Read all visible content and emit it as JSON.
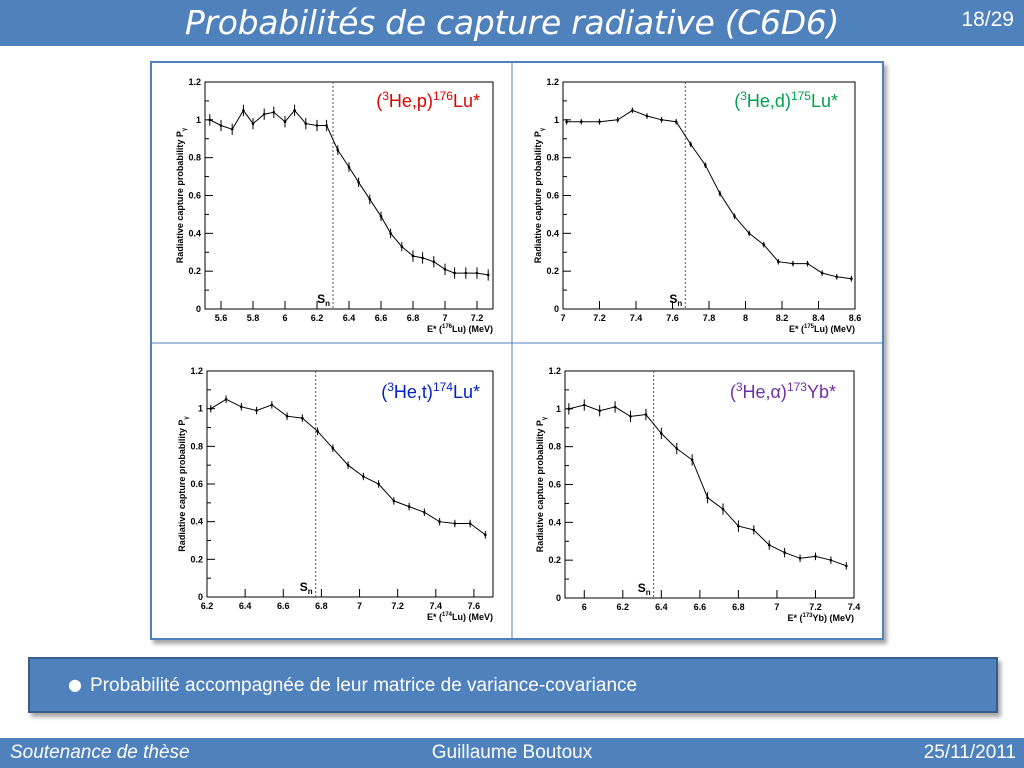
{
  "slide": {
    "title": "Probabilités de capture radiative (C6D6)",
    "page": "18/29",
    "bullet": "Probabilité accompagnée de leur matrice de variance-covariance",
    "footer_left": "Soutenance de thèse",
    "footer_center": "Guillaume Boutoux",
    "footer_right": "25/11/2011"
  },
  "colors": {
    "accent": "#4f81bd",
    "reaction_p": "#e00000",
    "reaction_d": "#00a050",
    "reaction_t": "#0020c0",
    "reaction_alpha": "#7030a0"
  },
  "chart_data": [
    {
      "type": "line",
      "reaction": {
        "pre": "(",
        "sup1": "3",
        "mid": "He,p)",
        "sup2": "176",
        "post": "Lu*"
      },
      "ylabel": "Radiative capture probability P",
      "ylabel_sub": "γ",
      "xlabel": {
        "pre": "E* (",
        "sup": "176",
        "post": "Lu) (MeV)"
      },
      "xlim": [
        5.5,
        7.3
      ],
      "ylim": [
        0,
        1.2
      ],
      "xticks": [
        5.6,
        5.8,
        6,
        6.2,
        6.4,
        6.6,
        6.8,
        7,
        7.2
      ],
      "xtick_labels": [
        "5.6",
        "5.8",
        "6",
        "6.2",
        "6.4",
        "6.6",
        "6.8",
        "7",
        "7.2"
      ],
      "yticks": [
        0,
        0.2,
        0.4,
        0.6,
        0.8,
        1,
        1.2
      ],
      "ytick_labels": [
        "0",
        "0.2",
        "0.4",
        "0.6",
        "0.8",
        "1",
        "1.2"
      ],
      "sn": 6.3,
      "sn_label": "S",
      "sn_sub": "n",
      "series": [
        {
          "x": [
            5.53,
            5.6,
            5.67,
            5.74,
            5.8,
            5.87,
            5.93,
            6.0,
            6.06,
            6.13,
            6.2,
            6.26,
            6.33,
            6.4,
            6.46,
            6.53,
            6.6,
            6.66,
            6.73,
            6.8,
            6.86,
            6.93,
            7.0,
            7.06,
            7.13,
            7.2,
            7.27
          ],
          "y": [
            1.0,
            0.97,
            0.95,
            1.05,
            0.98,
            1.03,
            1.04,
            0.99,
            1.05,
            0.98,
            0.97,
            0.97,
            0.84,
            0.75,
            0.67,
            0.58,
            0.49,
            0.4,
            0.33,
            0.28,
            0.27,
            0.25,
            0.21,
            0.19,
            0.19,
            0.19,
            0.18
          ],
          "err": [
            0.03,
            0.03,
            0.03,
            0.03,
            0.03,
            0.03,
            0.03,
            0.03,
            0.03,
            0.03,
            0.03,
            0.03,
            0.025,
            0.025,
            0.025,
            0.025,
            0.025,
            0.025,
            0.025,
            0.03,
            0.03,
            0.03,
            0.03,
            0.03,
            0.03,
            0.03,
            0.03
          ]
        }
      ]
    },
    {
      "type": "line",
      "reaction": {
        "pre": "(",
        "sup1": "3",
        "mid": "He,d)",
        "sup2": "175",
        "post": "Lu*"
      },
      "ylabel": "Radiative capture probability P",
      "ylabel_sub": "γ",
      "xlabel": {
        "pre": "E* (",
        "sup": "175",
        "post": "Lu) (MeV)"
      },
      "xlim": [
        7.0,
        8.6
      ],
      "ylim": [
        0,
        1.2
      ],
      "xticks": [
        7.0,
        7.2,
        7.4,
        7.6,
        7.8,
        8.0,
        8.2,
        8.4,
        8.6
      ],
      "xtick_labels": [
        "7",
        "7.2",
        "7.4",
        "7.6",
        "7.8",
        "8",
        "8.2",
        "8.4",
        "8.6"
      ],
      "yticks": [
        0,
        0.2,
        0.4,
        0.6,
        0.8,
        1,
        1.2
      ],
      "ytick_labels": [
        "0",
        "0.2",
        "0.4",
        "0.6",
        "0.8",
        "1",
        "1.2"
      ],
      "sn": 7.67,
      "sn_label": "S",
      "sn_sub": "n",
      "series": [
        {
          "x": [
            7.02,
            7.1,
            7.2,
            7.3,
            7.38,
            7.46,
            7.54,
            7.62,
            7.7,
            7.78,
            7.86,
            7.94,
            8.02,
            8.1,
            8.18,
            8.26,
            8.34,
            8.42,
            8.5,
            8.58
          ],
          "y": [
            0.99,
            0.99,
            0.99,
            1.0,
            1.05,
            1.02,
            1.0,
            0.99,
            0.87,
            0.76,
            0.61,
            0.49,
            0.4,
            0.34,
            0.25,
            0.24,
            0.24,
            0.19,
            0.17,
            0.16
          ],
          "err": [
            0.015,
            0.015,
            0.015,
            0.015,
            0.015,
            0.015,
            0.015,
            0.015,
            0.015,
            0.015,
            0.015,
            0.015,
            0.015,
            0.015,
            0.015,
            0.015,
            0.015,
            0.015,
            0.015,
            0.015
          ]
        }
      ]
    },
    {
      "type": "line",
      "reaction": {
        "pre": "(",
        "sup1": "3",
        "mid": "He,t)",
        "sup2": "174",
        "post": "Lu*"
      },
      "ylabel": "Radiative capture probability P",
      "ylabel_sub": "γ",
      "xlabel": {
        "pre": "E* (",
        "sup": "174",
        "post": "Lu) (MeV)"
      },
      "xlim": [
        6.2,
        7.7
      ],
      "ylim": [
        0,
        1.2
      ],
      "xticks": [
        6.2,
        6.4,
        6.6,
        6.8,
        7.0,
        7.2,
        7.4,
        7.6
      ],
      "xtick_labels": [
        "6.2",
        "6.4",
        "6.6",
        "6.8",
        "7",
        "7.2",
        "7.4",
        "7.6"
      ],
      "yticks": [
        0,
        0.2,
        0.4,
        0.6,
        0.8,
        1,
        1.2
      ],
      "ytick_labels": [
        "0",
        "0.2",
        "0.4",
        "0.6",
        "0.8",
        "1",
        "1.2"
      ],
      "sn": 6.77,
      "sn_label": "S",
      "sn_sub": "n",
      "series": [
        {
          "x": [
            6.22,
            6.3,
            6.38,
            6.46,
            6.54,
            6.62,
            6.7,
            6.78,
            6.86,
            6.94,
            7.02,
            7.1,
            7.18,
            7.26,
            7.34,
            7.42,
            7.5,
            7.58,
            7.66
          ],
          "y": [
            1.0,
            1.05,
            1.01,
            0.99,
            1.02,
            0.96,
            0.95,
            0.88,
            0.79,
            0.7,
            0.64,
            0.6,
            0.51,
            0.48,
            0.45,
            0.4,
            0.39,
            0.39,
            0.33
          ],
          "err": [
            0.02,
            0.02,
            0.02,
            0.02,
            0.02,
            0.02,
            0.02,
            0.02,
            0.02,
            0.02,
            0.02,
            0.02,
            0.02,
            0.02,
            0.02,
            0.02,
            0.02,
            0.02,
            0.02
          ]
        }
      ]
    },
    {
      "type": "line",
      "reaction": {
        "pre": "(",
        "sup1": "3",
        "mid": "He,α)",
        "sup2": "173",
        "post": "Yb*"
      },
      "ylabel": "Radiative capture probability P",
      "ylabel_sub": "γ",
      "xlabel": {
        "pre": "E* (",
        "sup": "173",
        "post": "Yb) (MeV)"
      },
      "xlim": [
        5.9,
        7.4
      ],
      "ylim": [
        0,
        1.2
      ],
      "xticks": [
        6.0,
        6.2,
        6.4,
        6.6,
        6.8,
        7.0,
        7.2,
        7.4
      ],
      "xtick_labels": [
        "6",
        "6.2",
        "6.4",
        "6.6",
        "6.8",
        "7",
        "7.2",
        "7.4"
      ],
      "yticks": [
        0,
        0.2,
        0.4,
        0.6,
        0.8,
        1,
        1.2
      ],
      "ytick_labels": [
        "0",
        "0.2",
        "0.4",
        "0.6",
        "0.8",
        "1",
        "1.2"
      ],
      "sn": 6.36,
      "sn_label": "S",
      "sn_sub": "n",
      "series": [
        {
          "x": [
            5.92,
            6.0,
            6.08,
            6.16,
            6.24,
            6.32,
            6.4,
            6.48,
            6.56,
            6.64,
            6.72,
            6.8,
            6.88,
            6.96,
            7.04,
            7.12,
            7.2,
            7.28,
            7.36
          ],
          "y": [
            1.0,
            1.02,
            0.99,
            1.01,
            0.96,
            0.97,
            0.87,
            0.79,
            0.73,
            0.53,
            0.47,
            0.38,
            0.36,
            0.28,
            0.24,
            0.21,
            0.22,
            0.2,
            0.17
          ],
          "err": [
            0.03,
            0.03,
            0.03,
            0.03,
            0.03,
            0.03,
            0.03,
            0.03,
            0.03,
            0.03,
            0.03,
            0.03,
            0.025,
            0.025,
            0.025,
            0.02,
            0.02,
            0.02,
            0.02
          ]
        }
      ]
    }
  ]
}
